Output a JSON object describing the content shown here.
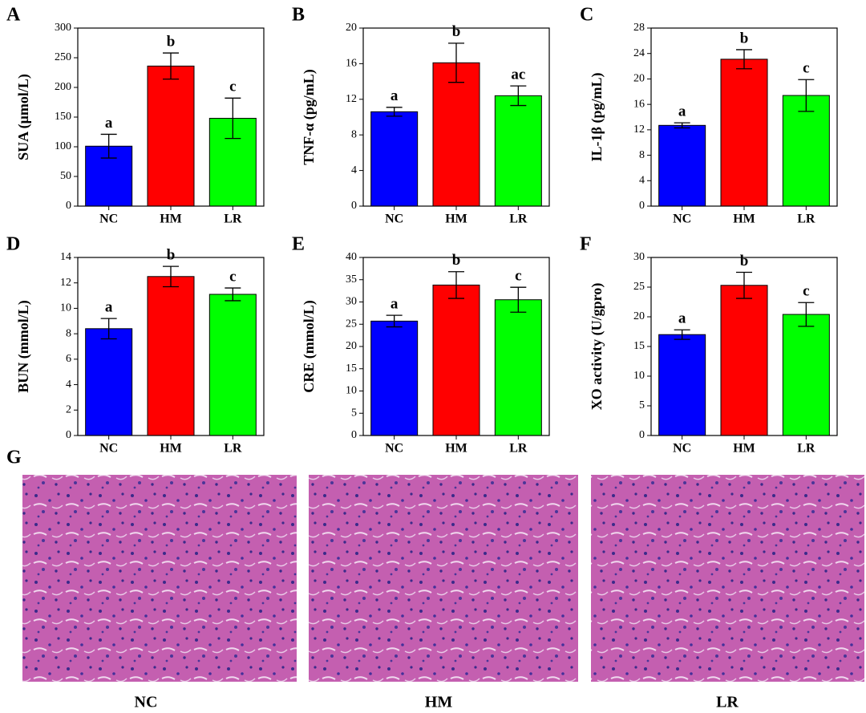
{
  "chart_data": [
    {
      "type": "bar",
      "panel": "A",
      "y_label": "SUA (μmol/L)",
      "categories": [
        "NC",
        "HM",
        "LR"
      ],
      "values": [
        101,
        236,
        148
      ],
      "errors": [
        20,
        22,
        34
      ],
      "annotations": [
        "a",
        "b",
        "c"
      ],
      "colors": [
        "#0000ff",
        "#ff0000",
        "#00ff00"
      ],
      "ylim": [
        0,
        300
      ],
      "yticks": [
        0,
        50,
        100,
        150,
        200,
        250,
        300
      ]
    },
    {
      "type": "bar",
      "panel": "B",
      "y_label": "TNF-α (pg/mL)",
      "categories": [
        "NC",
        "HM",
        "LR"
      ],
      "values": [
        10.6,
        16.1,
        12.4
      ],
      "errors": [
        0.5,
        2.2,
        1.1
      ],
      "annotations": [
        "a",
        "b",
        "ac"
      ],
      "colors": [
        "#0000ff",
        "#ff0000",
        "#00ff00"
      ],
      "ylim": [
        0,
        20
      ],
      "yticks": [
        0,
        4,
        8,
        12,
        16,
        20
      ]
    },
    {
      "type": "bar",
      "panel": "C",
      "y_label": "IL-1β (pg/mL)",
      "categories": [
        "NC",
        "HM",
        "LR"
      ],
      "values": [
        12.7,
        23.1,
        17.4
      ],
      "errors": [
        0.4,
        1.5,
        2.5
      ],
      "annotations": [
        "a",
        "b",
        "c"
      ],
      "colors": [
        "#0000ff",
        "#ff0000",
        "#00ff00"
      ],
      "ylim": [
        0,
        28
      ],
      "yticks": [
        0,
        4,
        8,
        12,
        16,
        20,
        24,
        28
      ]
    },
    {
      "type": "bar",
      "panel": "D",
      "y_label": "BUN (mmol/L)",
      "categories": [
        "NC",
        "HM",
        "LR"
      ],
      "values": [
        8.4,
        12.5,
        11.1
      ],
      "errors": [
        0.8,
        0.8,
        0.5
      ],
      "annotations": [
        "a",
        "b",
        "c"
      ],
      "colors": [
        "#0000ff",
        "#ff0000",
        "#00ff00"
      ],
      "ylim": [
        0,
        14
      ],
      "yticks": [
        0,
        2,
        4,
        6,
        8,
        10,
        12,
        14
      ]
    },
    {
      "type": "bar",
      "panel": "E",
      "y_label": "CRE (mmol/L)",
      "categories": [
        "NC",
        "HM",
        "LR"
      ],
      "values": [
        25.7,
        33.8,
        30.5
      ],
      "errors": [
        1.3,
        3,
        2.8
      ],
      "annotations": [
        "a",
        "b",
        "c"
      ],
      "colors": [
        "#0000ff",
        "#ff0000",
        "#00ff00"
      ],
      "ylim": [
        0,
        40
      ],
      "yticks": [
        0,
        5,
        10,
        15,
        20,
        25,
        30,
        35,
        40
      ]
    },
    {
      "type": "bar",
      "panel": "F",
      "y_label": "XO activity (U/gpro)",
      "categories": [
        "NC",
        "HM",
        "LR"
      ],
      "values": [
        17,
        25.3,
        20.4
      ],
      "errors": [
        0.8,
        2.2,
        2
      ],
      "annotations": [
        "a",
        "b",
        "c"
      ],
      "colors": [
        "#0000ff",
        "#ff0000",
        "#00ff00"
      ],
      "ylim": [
        0,
        30
      ],
      "yticks": [
        0,
        5,
        10,
        15,
        20,
        25,
        30
      ]
    }
  ],
  "histology": {
    "panel": "G",
    "labels": [
      "NC",
      "HM",
      "LR"
    ]
  }
}
